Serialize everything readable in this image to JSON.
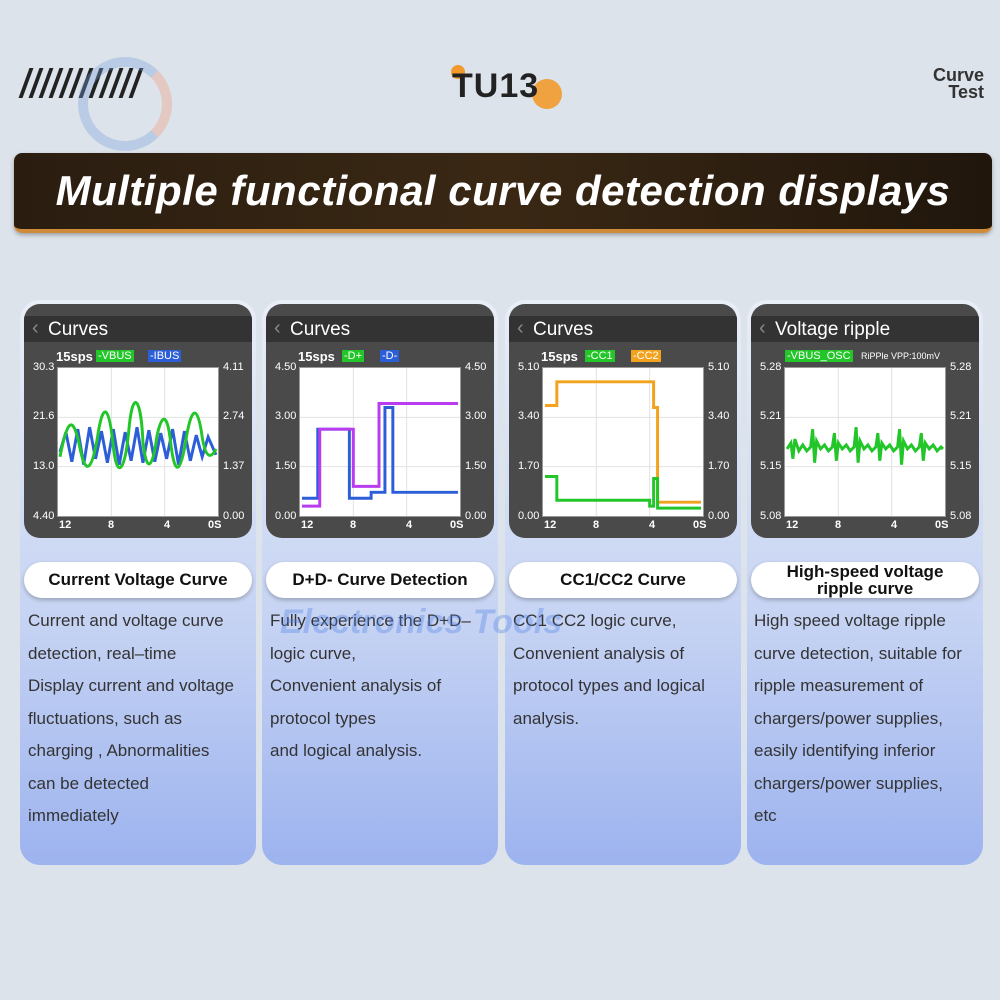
{
  "header": {
    "brand": "TU13",
    "corner_line1": "Curve",
    "corner_line2": "Test",
    "watermark": "Electronics Tools",
    "banner": "Multiple functional curve detection displays"
  },
  "cards": [
    {
      "screen_title": "Curves",
      "sps": "15sps",
      "tags": [
        "-VBUS",
        "-IBUS"
      ],
      "y_left": [
        "30.3",
        "21.6",
        "13.0",
        "4.40"
      ],
      "y_right": [
        "4.11",
        "2.74",
        "1.37",
        "0.00"
      ],
      "x_ticks": [
        "12",
        "8",
        "4",
        "0S"
      ],
      "pill": "Current Voltage Curve",
      "desc": [
        "Current and voltage curve",
        "detection, real–time",
        "Display current and voltage",
        "fluctuations, such as",
        "charging , Abnormalities",
        "can be detected",
        "immediately"
      ]
    },
    {
      "screen_title": "Curves",
      "sps": "15sps",
      "tags": [
        "-D+",
        "-D-"
      ],
      "y_left": [
        "4.50",
        "3.00",
        "1.50",
        "0.00"
      ],
      "y_right": [
        "4.50",
        "3.00",
        "1.50",
        "0.00"
      ],
      "x_ticks": [
        "12",
        "8",
        "4",
        "0S"
      ],
      "pill": "D+D- Curve Detection",
      "desc": [
        "Fully experience the D+D–",
        "logic curve,",
        "Convenient analysis of",
        "protocol types",
        "and logical analysis."
      ]
    },
    {
      "screen_title": "Curves",
      "sps": "15sps",
      "tags": [
        "-CC1",
        "-CC2"
      ],
      "y_left": [
        "5.10",
        "3.40",
        "1.70",
        "0.00"
      ],
      "y_right": [
        "5.10",
        "3.40",
        "1.70",
        "0.00"
      ],
      "x_ticks": [
        "12",
        "8",
        "4",
        "0S"
      ],
      "pill": "CC1/CC2 Curve",
      "desc": [
        "CC1 CC2 logic curve,",
        "Convenient analysis of",
        "protocol types and logical",
        "analysis."
      ]
    },
    {
      "screen_title": "Voltage ripple",
      "sps": "",
      "tags": [
        "-VBUS_OSC",
        "RiPPle VPP:100mV"
      ],
      "y_left": [
        "5.28",
        "5.21",
        "5.15",
        "5.08"
      ],
      "y_right": [
        "5.28",
        "5.21",
        "5.15",
        "5.08"
      ],
      "x_ticks": [
        "12",
        "8",
        "4",
        "0S"
      ],
      "pill_line1": "High-speed voltage",
      "pill_line2": "ripple curve",
      "desc": [
        "High speed voltage ripple",
        "curve detection, suitable for",
        "ripple measurement of",
        "chargers/power supplies,",
        "easily identifying inferior",
        "chargers/power supplies,",
        "etc"
      ]
    }
  ],
  "colors": {
    "green": "#22c629",
    "blue": "#2c5ed8",
    "purple": "#b93cf0",
    "orange": "#f2a21c",
    "banner_accent": "#d08b3a"
  }
}
